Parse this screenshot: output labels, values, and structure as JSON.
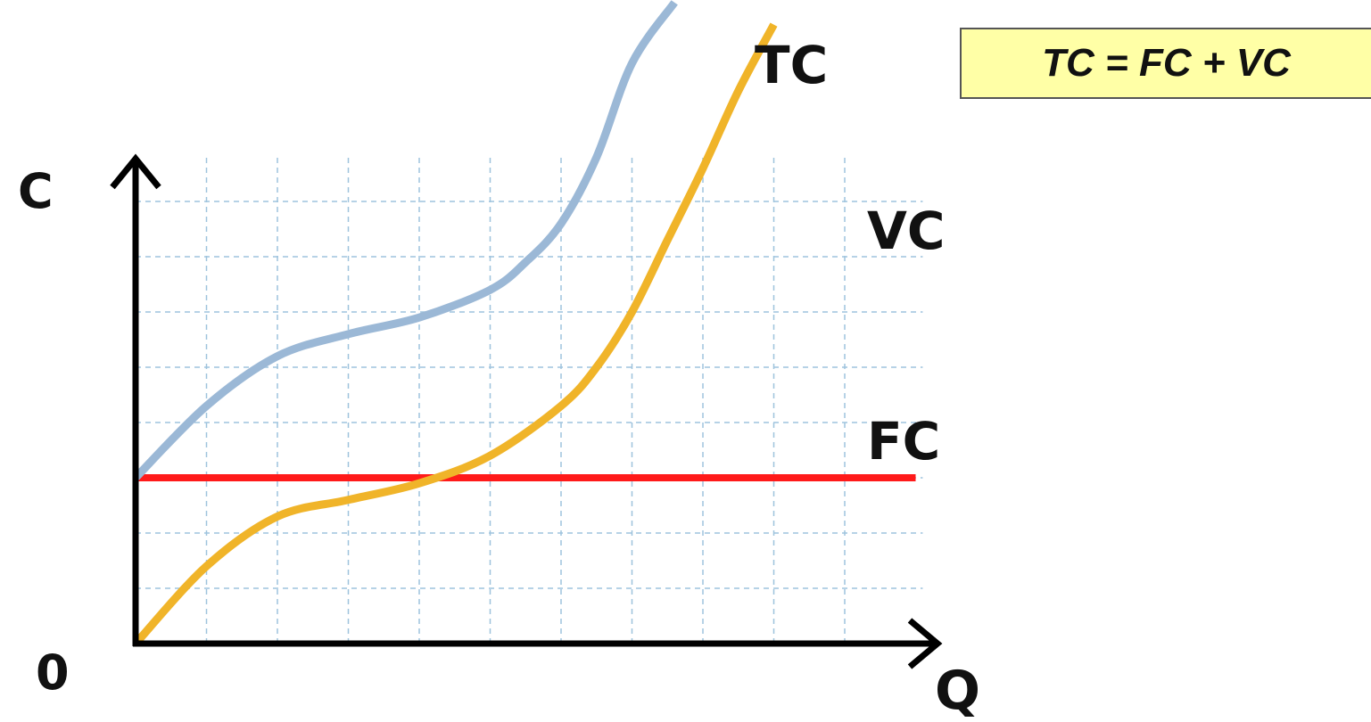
{
  "formula": "TC = FC + VC",
  "axes": {
    "y_label": "C",
    "x_label": "Q",
    "origin_label": "0"
  },
  "colors": {
    "TC": "#9bb8d6",
    "VC": "#f0b429",
    "FC": "#ff1a1a",
    "axis": "#000000",
    "grid": "#9ec3dd",
    "formula_bg": "#ffffa6"
  },
  "chart_data": {
    "type": "line",
    "title": "",
    "xlabel": "Q",
    "ylabel": "C",
    "xlim": [
      0,
      11
    ],
    "ylim": [
      0,
      10.4
    ],
    "grid": true,
    "grid_style": "dashed",
    "series": [
      {
        "name": "TC",
        "x": [
          0,
          1,
          2,
          3,
          4,
          5,
          5.5,
          6,
          6.5,
          7,
          7.6
        ],
        "y": [
          3,
          4.3,
          5.2,
          5.6,
          5.9,
          6.4,
          6.9,
          7.6,
          8.8,
          10.5,
          11.6
        ]
      },
      {
        "name": "VC",
        "x": [
          0,
          1,
          2,
          3,
          4,
          5,
          6,
          6.5,
          7,
          7.5,
          8,
          8.5,
          9
        ],
        "y": [
          0,
          1.4,
          2.3,
          2.6,
          2.9,
          3.4,
          4.3,
          5.0,
          6.0,
          7.3,
          8.6,
          10.0,
          11.2
        ]
      },
      {
        "name": "FC",
        "x": [
          0,
          11
        ],
        "y": [
          3,
          3
        ]
      }
    ]
  }
}
